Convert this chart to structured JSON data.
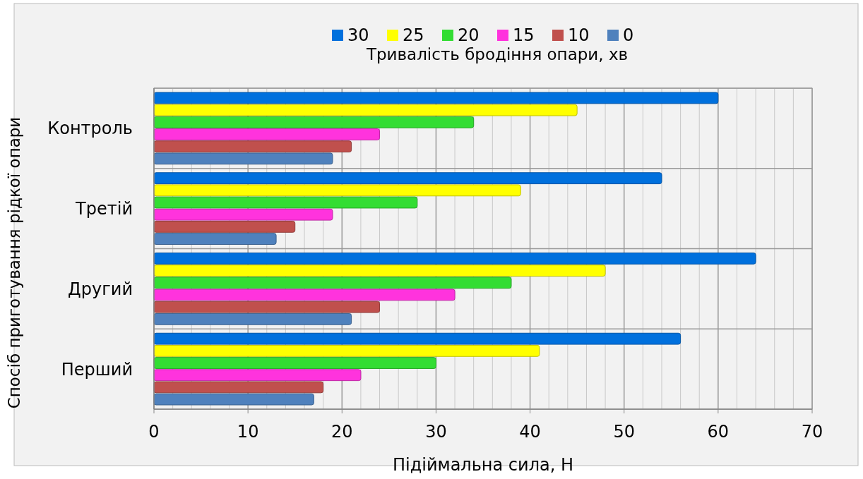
{
  "chart_data": {
    "type": "bar",
    "orientation": "horizontal",
    "xlabel": "Підіймальна сила, Н",
    "ylabel": "Спосіб приготування рідкої опари",
    "legend_title": "Тривалість бродіння опари, хв",
    "legend": "top",
    "categories": [
      "Контроль",
      "Третій",
      "Другий",
      "Перший"
    ],
    "series": [
      {
        "name": "30",
        "color": "#0070dd",
        "values": [
          60,
          54,
          64,
          56
        ]
      },
      {
        "name": "25",
        "color": "#ffff00",
        "values": [
          45,
          39,
          48,
          41
        ]
      },
      {
        "name": "20",
        "color": "#33dd33",
        "values": [
          34,
          28,
          38,
          30
        ]
      },
      {
        "name": "15",
        "color": "#ff33dd",
        "values": [
          24,
          19,
          32,
          22
        ]
      },
      {
        "name": "10",
        "color": "#c0504d",
        "values": [
          21,
          15,
          24,
          18
        ]
      },
      {
        "name": "0",
        "color": "#4f81bd",
        "values": [
          19,
          13,
          21,
          17
        ]
      }
    ],
    "xlim": [
      0,
      70
    ],
    "xticks": [
      0,
      {
        "value": 2,
        "label": null
      },
      {
        "value": 4,
        "label": null
      },
      {
        "value": 6,
        "label": null
      },
      {
        "value": 8,
        "label": null
      },
      10,
      {
        "value": 12,
        "label": null
      },
      {
        "value": 14,
        "label": null
      },
      {
        "value": 16,
        "label": null
      },
      {
        "value": 18,
        "label": null
      },
      20,
      {
        "value": 22,
        "label": null
      },
      {
        "value": 24,
        "label": null
      },
      {
        "value": 26,
        "label": null
      },
      {
        "value": 28,
        "label": null
      },
      30,
      {
        "value": 32,
        "label": null
      },
      {
        "value": 34,
        "label": null
      },
      {
        "value": 36,
        "label": null
      },
      {
        "value": 38,
        "label": null
      },
      40,
      {
        "value": 42,
        "label": null
      },
      {
        "value": 44,
        "label": null
      },
      {
        "value": 46,
        "label": null
      },
      {
        "value": 48,
        "label": null
      },
      50,
      {
        "value": 52,
        "label": null
      },
      {
        "value": 54,
        "label": null
      },
      {
        "value": 56,
        "label": null
      },
      {
        "value": 58,
        "label": null
      },
      60,
      {
        "value": 62,
        "label": null
      },
      {
        "value": 64,
        "label": null
      },
      {
        "value": 66,
        "label": null
      },
      {
        "value": 68,
        "label": null
      },
      70
    ],
    "grid": true
  }
}
